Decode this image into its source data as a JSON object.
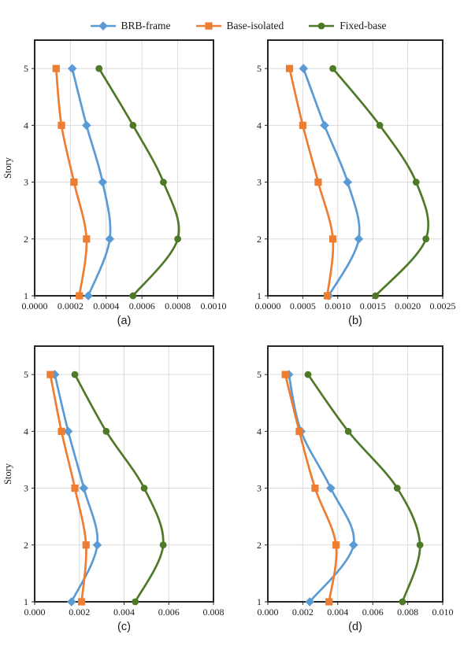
{
  "figure": {
    "legend": {
      "items": [
        {
          "label": "BRB-frame",
          "marker": "diamond",
          "color": "#5B9BD5"
        },
        {
          "label": "Base-isolated",
          "marker": "square",
          "color": "#ED7D31"
        },
        {
          "label": "Fixed-base",
          "marker": "circle",
          "color": "#4E7A28"
        }
      ]
    },
    "styles": {
      "grid_color": "#DADADA",
      "border_color": "#262626",
      "text_color": "#1A1A1A",
      "line_width": 2.7
    }
  },
  "chart_data": [
    {
      "id": "a",
      "type": "line",
      "caption": "(a)",
      "ylabel": "Story",
      "legend_position": "top",
      "grid": true,
      "y_axis": {
        "stories": [
          1,
          2,
          3,
          4,
          5
        ],
        "display_max": 5.5
      },
      "x_axis": {
        "min": 0,
        "max": 0.001,
        "ticks": [
          "0.0000",
          "0.0002",
          "0.0004",
          "0.0006",
          "0.0008",
          "0.0010"
        ]
      },
      "series": [
        {
          "name": "BRB-frame",
          "values": [
            0.0003,
            0.00042,
            0.00038,
            0.00029,
            0.00021
          ]
        },
        {
          "name": "Base-isolated",
          "values": [
            0.00025,
            0.00029,
            0.00022,
            0.00015,
            0.00012
          ]
        },
        {
          "name": "Fixed-base",
          "values": [
            0.00055,
            0.0008,
            0.00072,
            0.00055,
            0.00036
          ]
        }
      ]
    },
    {
      "id": "b",
      "type": "line",
      "caption": "(b)",
      "ylabel": "",
      "grid": true,
      "y_axis": {
        "stories": [
          1,
          2,
          3,
          4,
          5
        ],
        "display_max": 5.5
      },
      "x_axis": {
        "min": 0,
        "max": 0.0025,
        "ticks": [
          "0.0000",
          "0.0005",
          "0.0010",
          "0.0015",
          "0.0020",
          "0.0025"
        ]
      },
      "series": [
        {
          "name": "BRB-frame",
          "values": [
            0.00087,
            0.0013,
            0.00114,
            0.00081,
            0.00051
          ]
        },
        {
          "name": "Base-isolated",
          "values": [
            0.00085,
            0.00093,
            0.00072,
            0.0005,
            0.00031
          ]
        },
        {
          "name": "Fixed-base",
          "values": [
            0.00154,
            0.00226,
            0.00212,
            0.0016,
            0.00093
          ]
        }
      ]
    },
    {
      "id": "c",
      "type": "line",
      "caption": "(c)",
      "ylabel": "Story",
      "grid": true,
      "y_axis": {
        "stories": [
          1,
          2,
          3,
          4,
          5
        ],
        "display_max": 5.5
      },
      "x_axis": {
        "min": 0,
        "max": 0.008,
        "ticks": [
          "0.000",
          "0.002",
          "0.004",
          "0.006",
          "0.008"
        ]
      },
      "series": [
        {
          "name": "BRB-frame",
          "values": [
            0.00165,
            0.0028,
            0.0022,
            0.0015,
            0.0009
          ]
        },
        {
          "name": "Base-isolated",
          "values": [
            0.0021,
            0.0023,
            0.0018,
            0.0012,
            0.0007
          ]
        },
        {
          "name": "Fixed-base",
          "values": [
            0.0045,
            0.00575,
            0.0049,
            0.0032,
            0.0018
          ]
        }
      ]
    },
    {
      "id": "d",
      "type": "line",
      "caption": "(d)",
      "ylabel": "",
      "grid": true,
      "y_axis": {
        "stories": [
          1,
          2,
          3,
          4,
          5
        ],
        "display_max": 5.5
      },
      "x_axis": {
        "min": 0,
        "max": 0.01,
        "ticks": [
          "0.000",
          "0.002",
          "0.004",
          "0.006",
          "0.008",
          "0.010"
        ]
      },
      "series": [
        {
          "name": "BRB-frame",
          "values": [
            0.0024,
            0.0049,
            0.0036,
            0.0019,
            0.0012
          ]
        },
        {
          "name": "Base-isolated",
          "values": [
            0.0035,
            0.0039,
            0.0027,
            0.0018,
            0.001
          ]
        },
        {
          "name": "Fixed-base",
          "values": [
            0.0077,
            0.0087,
            0.0074,
            0.0046,
            0.0023
          ]
        }
      ]
    }
  ]
}
